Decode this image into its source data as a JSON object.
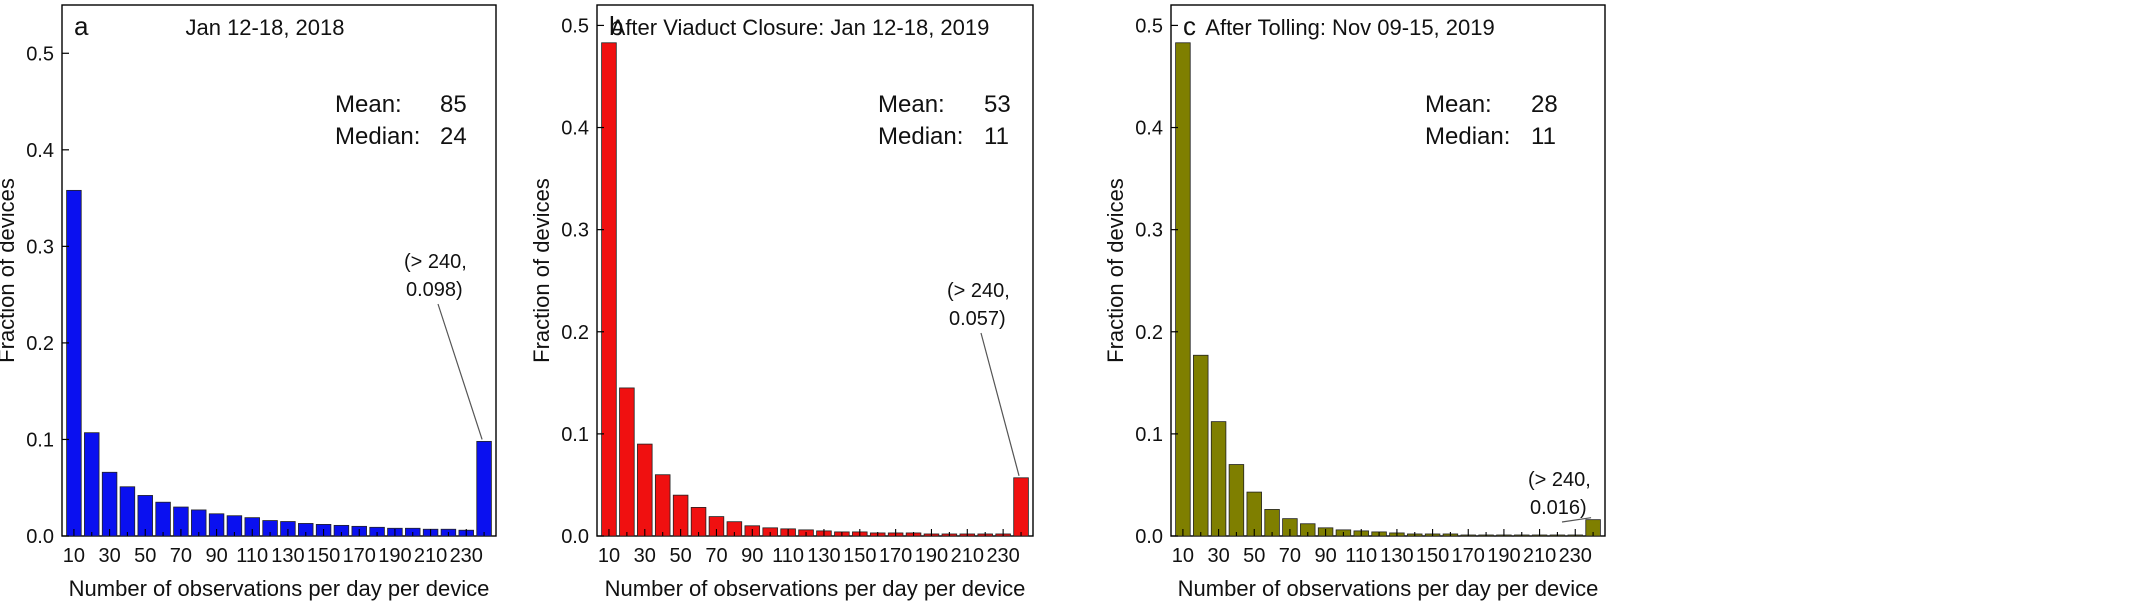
{
  "chart_data": [
    {
      "type": "bar",
      "panel": "a",
      "title": "Jan 12-18, 2018",
      "xlabel": "Number of observations per day per device",
      "ylabel": "Fraction of devices",
      "ylim": [
        0,
        0.55
      ],
      "yticks": [
        "0.0",
        "0.1",
        "0.2",
        "0.3",
        "0.4",
        "0.5"
      ],
      "xtick_labels": [
        "10",
        "30",
        "50",
        "70",
        "90",
        "110",
        "130",
        "150",
        "170",
        "190",
        "210",
        "230"
      ],
      "categories": [
        "10",
        "20",
        "30",
        "40",
        "50",
        "60",
        "70",
        "80",
        "90",
        "100",
        "110",
        "120",
        "130",
        "140",
        "150",
        "160",
        "170",
        "180",
        "190",
        "200",
        "210",
        "220",
        "230",
        "> 240"
      ],
      "values": [
        0.358,
        0.107,
        0.066,
        0.051,
        0.042,
        0.035,
        0.03,
        0.027,
        0.023,
        0.021,
        0.019,
        0.016,
        0.015,
        0.013,
        0.012,
        0.011,
        0.01,
        0.009,
        0.008,
        0.008,
        0.007,
        0.007,
        0.006,
        0.098
      ],
      "color": "#0a10f0",
      "mean_label": "Mean:",
      "mean_value": "85",
      "median_label": "Median:",
      "median_value": "24",
      "annotation_line1": "(> 240,",
      "annotation_line2": "0.098)"
    },
    {
      "type": "bar",
      "panel": "b",
      "title": "After Viaduct Closure: Jan 12-18, 2019",
      "xlabel": "Number of observations per day per device",
      "ylabel": "Fraction of devices",
      "ylim": [
        0,
        0.52
      ],
      "yticks": [
        "0.0",
        "0.1",
        "0.2",
        "0.3",
        "0.4",
        "0.5"
      ],
      "xtick_labels": [
        "10",
        "30",
        "50",
        "70",
        "90",
        "110",
        "130",
        "150",
        "170",
        "190",
        "210",
        "230"
      ],
      "categories": [
        "10",
        "20",
        "30",
        "40",
        "50",
        "60",
        "70",
        "80",
        "90",
        "100",
        "110",
        "120",
        "130",
        "140",
        "150",
        "160",
        "170",
        "180",
        "190",
        "200",
        "210",
        "220",
        "230",
        "> 240"
      ],
      "values": [
        0.483,
        0.145,
        0.09,
        0.06,
        0.04,
        0.028,
        0.019,
        0.014,
        0.01,
        0.008,
        0.007,
        0.006,
        0.005,
        0.004,
        0.004,
        0.003,
        0.003,
        0.003,
        0.002,
        0.002,
        0.002,
        0.002,
        0.002,
        0.057
      ],
      "color": "#f01010",
      "mean_label": "Mean:",
      "mean_value": "53",
      "median_label": "Median:",
      "median_value": "11",
      "annotation_line1": "(> 240,",
      "annotation_line2": "0.057)"
    },
    {
      "type": "bar",
      "panel": "c",
      "title": "After Tolling: Nov 09-15, 2019",
      "xlabel": "Number of observations per day per device",
      "ylabel": "Fraction of devices",
      "ylim": [
        0,
        0.52
      ],
      "yticks": [
        "0.0",
        "0.1",
        "0.2",
        "0.3",
        "0.4",
        "0.5"
      ],
      "xtick_labels": [
        "10",
        "30",
        "50",
        "70",
        "90",
        "110",
        "130",
        "150",
        "170",
        "190",
        "210",
        "230"
      ],
      "categories": [
        "10",
        "20",
        "30",
        "40",
        "50",
        "60",
        "70",
        "80",
        "90",
        "100",
        "110",
        "120",
        "130",
        "140",
        "150",
        "160",
        "170",
        "180",
        "190",
        "200",
        "210",
        "220",
        "230",
        "> 240"
      ],
      "values": [
        0.483,
        0.177,
        0.112,
        0.07,
        0.043,
        0.026,
        0.017,
        0.012,
        0.008,
        0.006,
        0.005,
        0.004,
        0.003,
        0.002,
        0.002,
        0.002,
        0.001,
        0.001,
        0.001,
        0.001,
        0.001,
        0.001,
        0.001,
        0.016
      ],
      "color": "#7f7f00",
      "mean_label": "Mean:",
      "mean_value": "28",
      "median_label": "Median:",
      "median_value": "11",
      "annotation_line1": "(> 240,",
      "annotation_line2": "0.016)"
    }
  ]
}
